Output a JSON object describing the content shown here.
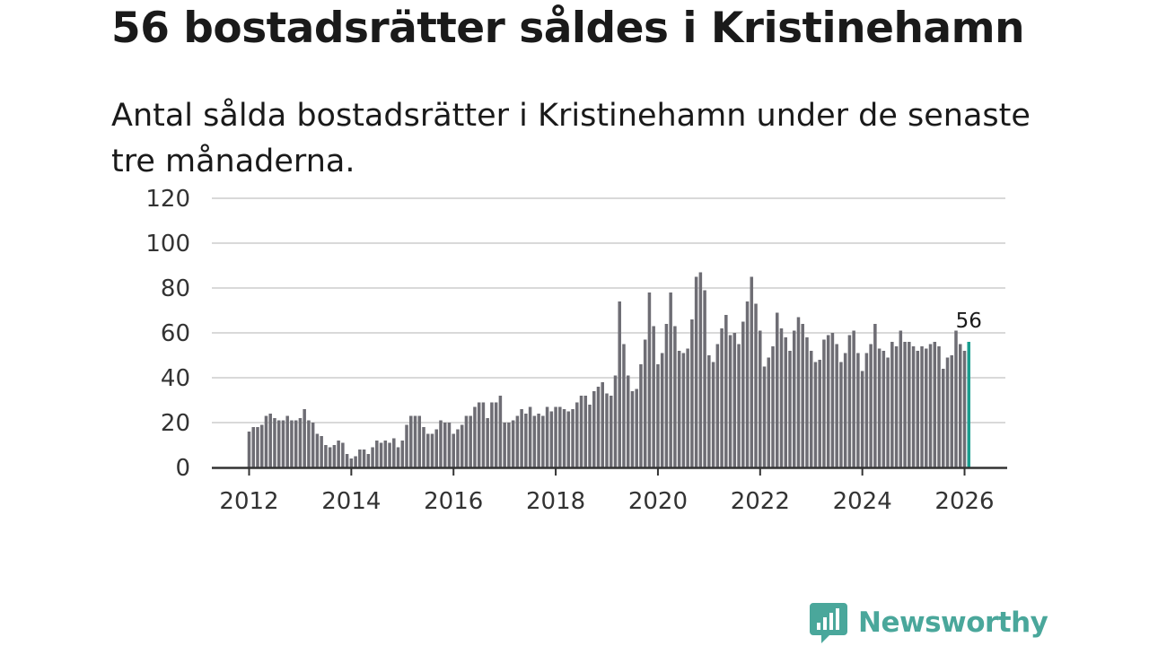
{
  "title": "56 bostadsrätter såldes i Kristinehamn",
  "subtitle": "Antal sålda bostadsrätter i Kristinehamn under de senaste tre månaderna.",
  "colors": {
    "bar": "#6e6d74",
    "highlight": "#1a9e8f",
    "grid": "#d9d9d9",
    "axis": "#333333",
    "brand": "#4aa79b"
  },
  "logo": {
    "text": "Newsworthy",
    "icon": "bar-chart-speech-icon"
  },
  "chart_data": {
    "type": "bar",
    "title": "56 bostadsrätter såldes i Kristinehamn",
    "xlabel": "",
    "ylabel": "",
    "ylim": [
      0,
      120
    ],
    "y_ticks": [
      0,
      20,
      40,
      60,
      80,
      100,
      120
    ],
    "x_ticks": [
      2012,
      2014,
      2016,
      2018,
      2020,
      2022,
      2024,
      2026
    ],
    "x_tick_labels": [
      "2012",
      "2014",
      "2016",
      "2018",
      "2020",
      "2022",
      "2024",
      "2026"
    ],
    "grid": true,
    "x_start": 2012.0,
    "x_step": 0.08333,
    "highlight_label": "56",
    "series": [
      {
        "name": "Antal sålda bostadsrätter",
        "values": [
          16,
          18,
          18,
          19,
          23,
          24,
          22,
          21,
          21,
          23,
          21,
          21,
          22,
          26,
          21,
          20,
          15,
          14,
          10,
          9,
          10,
          12,
          11,
          6,
          4,
          5,
          8,
          8,
          6,
          9,
          12,
          11,
          12,
          11,
          13,
          9,
          12,
          19,
          23,
          23,
          23,
          18,
          15,
          15,
          17,
          21,
          20,
          20,
          15,
          17,
          19,
          23,
          23,
          27,
          29,
          29,
          22,
          29,
          29,
          32,
          20,
          20,
          21,
          23,
          26,
          24,
          27,
          23,
          24,
          23,
          27,
          25,
          27,
          27,
          26,
          25,
          26,
          29,
          32,
          32,
          28,
          34,
          36,
          38,
          33,
          32,
          41,
          74,
          55,
          41,
          34,
          35,
          46,
          57,
          78,
          63,
          46,
          51,
          64,
          78,
          63,
          52,
          51,
          53,
          66,
          85,
          87,
          79,
          50,
          47,
          55,
          62,
          68,
          59,
          60,
          55,
          65,
          74,
          85,
          73,
          61,
          45,
          49,
          54,
          69,
          62,
          58,
          52,
          61,
          67,
          64,
          58,
          52,
          47,
          48,
          57,
          59,
          60,
          55,
          47,
          51,
          59,
          61,
          51,
          43,
          51,
          55,
          64,
          53,
          52,
          49,
          56,
          54,
          61,
          56,
          56,
          54,
          52,
          54,
          53,
          55,
          56,
          54,
          44,
          49,
          50,
          61,
          55,
          52,
          56
        ]
      }
    ]
  }
}
